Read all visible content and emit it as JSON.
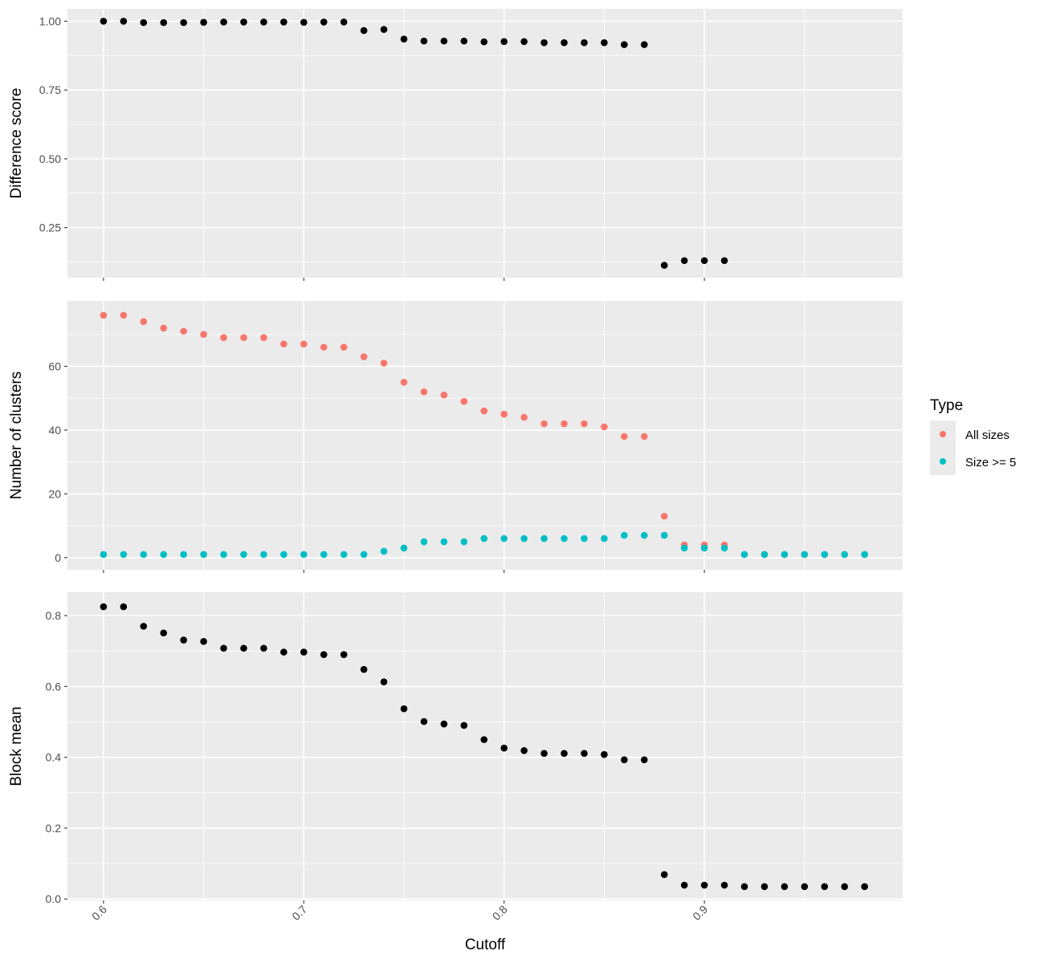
{
  "chart_data": {
    "type": "scatter",
    "xlabel": "Cutoff",
    "xlim": [
      0.582,
      0.999
    ],
    "x_ticks": [
      "0.6",
      "0.7",
      "0.8",
      "0.9"
    ],
    "grid": true,
    "legend": {
      "title": "Type",
      "placement": "right",
      "items": [
        {
          "label": "All sizes",
          "color": "#F8766D"
        },
        {
          "label": "Size >= 5",
          "color": "#00BFC4"
        }
      ]
    },
    "panels": [
      {
        "ylabel": "Difference score",
        "ylim": [
          0.068,
          1.045
        ],
        "y_ticks": [
          "0.25",
          "0.50",
          "0.75",
          "1.00"
        ],
        "series": [
          {
            "color": "#000000",
            "x": [
              0.6,
              0.61,
              0.62,
              0.63,
              0.64,
              0.65,
              0.66,
              0.67,
              0.68,
              0.69,
              0.7,
              0.71,
              0.72,
              0.73,
              0.74,
              0.75,
              0.76,
              0.77,
              0.78,
              0.79,
              0.8,
              0.81,
              0.82,
              0.83,
              0.84,
              0.85,
              0.86,
              0.87,
              0.88,
              0.89,
              0.9,
              0.91
            ],
            "y": [
              1.0,
              1.0,
              0.995,
              0.995,
              0.995,
              0.996,
              0.997,
              0.997,
              0.997,
              0.997,
              0.996,
              0.997,
              0.997,
              0.966,
              0.97,
              0.935,
              0.928,
              0.928,
              0.928,
              0.925,
              0.926,
              0.926,
              0.922,
              0.922,
              0.922,
              0.922,
              0.915,
              0.915,
              0.113,
              0.13,
              0.13,
              0.13
            ]
          }
        ]
      },
      {
        "ylabel": "Number of clusters",
        "ylim": [
          -3.8,
          80.5
        ],
        "y_ticks": [
          "0",
          "20",
          "40",
          "60"
        ],
        "series": [
          {
            "name": "All sizes",
            "color": "#F8766D",
            "x": [
              0.6,
              0.61,
              0.62,
              0.63,
              0.64,
              0.65,
              0.66,
              0.67,
              0.68,
              0.69,
              0.7,
              0.71,
              0.72,
              0.73,
              0.74,
              0.75,
              0.76,
              0.77,
              0.78,
              0.79,
              0.8,
              0.81,
              0.82,
              0.83,
              0.84,
              0.85,
              0.86,
              0.87,
              0.88,
              0.89,
              0.9,
              0.91,
              0.92,
              0.93,
              0.94,
              0.95,
              0.96,
              0.97,
              0.98
            ],
            "y": [
              76,
              76,
              74,
              72,
              71,
              70,
              69,
              69,
              69,
              67,
              67,
              66,
              66,
              63,
              61,
              55,
              52,
              51,
              49,
              46,
              45,
              44,
              42,
              42,
              42,
              41,
              38,
              38,
              13,
              4,
              4,
              4,
              1,
              1,
              1,
              1,
              1,
              1,
              1
            ]
          },
          {
            "name": "Size >= 5",
            "color": "#00BFC4",
            "x": [
              0.6,
              0.61,
              0.62,
              0.63,
              0.64,
              0.65,
              0.66,
              0.67,
              0.68,
              0.69,
              0.7,
              0.71,
              0.72,
              0.73,
              0.74,
              0.75,
              0.76,
              0.77,
              0.78,
              0.79,
              0.8,
              0.81,
              0.82,
              0.83,
              0.84,
              0.85,
              0.86,
              0.87,
              0.88,
              0.89,
              0.9,
              0.91,
              0.92,
              0.93,
              0.94,
              0.95,
              0.96,
              0.97,
              0.98
            ],
            "y": [
              1,
              1,
              1,
              1,
              1,
              1,
              1,
              1,
              1,
              1,
              1,
              1,
              1,
              1,
              2,
              3,
              5,
              5,
              5,
              6,
              6,
              6,
              6,
              6,
              6,
              6,
              7,
              7,
              7,
              3,
              3,
              3,
              1,
              1,
              1,
              1,
              1,
              1,
              1
            ]
          }
        ]
      },
      {
        "ylabel": "Block mean",
        "ylim": [
          -0.004,
          0.866
        ],
        "y_ticks": [
          "0.0",
          "0.2",
          "0.4",
          "0.6",
          "0.8"
        ],
        "series": [
          {
            "color": "#000000",
            "x": [
              0.6,
              0.61,
              0.62,
              0.63,
              0.64,
              0.65,
              0.66,
              0.67,
              0.68,
              0.69,
              0.7,
              0.71,
              0.72,
              0.73,
              0.74,
              0.75,
              0.76,
              0.77,
              0.78,
              0.79,
              0.8,
              0.81,
              0.82,
              0.83,
              0.84,
              0.85,
              0.86,
              0.87,
              0.88,
              0.89,
              0.9,
              0.91,
              0.92,
              0.93,
              0.94,
              0.95,
              0.96,
              0.97,
              0.98
            ],
            "y": [
              0.825,
              0.825,
              0.77,
              0.751,
              0.731,
              0.727,
              0.708,
              0.708,
              0.708,
              0.697,
              0.697,
              0.69,
              0.69,
              0.648,
              0.613,
              0.537,
              0.501,
              0.494,
              0.49,
              0.45,
              0.426,
              0.419,
              0.411,
              0.411,
              0.411,
              0.408,
              0.393,
              0.393,
              0.069,
              0.039,
              0.039,
              0.039,
              0.035,
              0.035,
              0.035,
              0.035,
              0.035,
              0.035,
              0.035
            ]
          }
        ]
      }
    ]
  }
}
